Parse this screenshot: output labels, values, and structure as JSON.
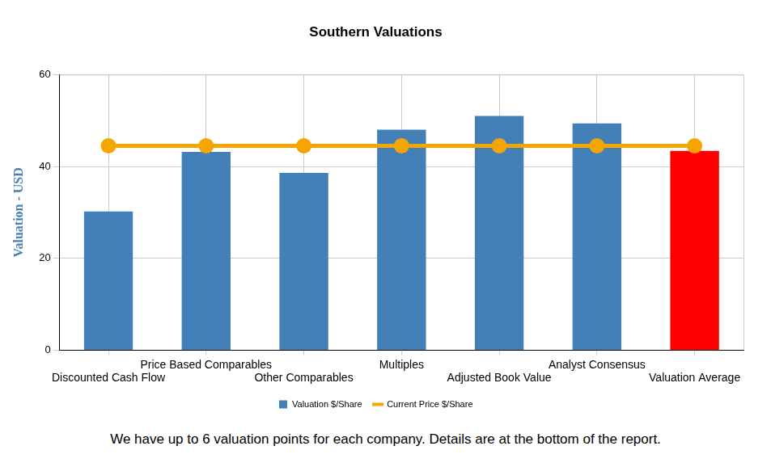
{
  "chart_data": {
    "type": "bar",
    "title": "Southern Valuations",
    "y_label": "Valuation - USD",
    "categories": [
      "Discounted Cash Flow",
      "Price Based Comparables",
      "Other Comparables",
      "Multiples",
      "Adjusted Book Value",
      "Analyst Consensus",
      "Valuation Average"
    ],
    "series": [
      {
        "name": "Valuation $/Share",
        "type": "bar",
        "color": "#4380b8",
        "colors": [
          "#4380b8",
          "#4380b8",
          "#4380b8",
          "#4380b8",
          "#4380b8",
          "#4380b8",
          "#ff0000"
        ],
        "values": [
          30.2,
          43.2,
          38.6,
          48,
          51,
          49.4,
          43.4
        ]
      },
      {
        "name": "Current Price $/Share",
        "type": "line",
        "color": "#f5a500",
        "marker": "circle",
        "values": [
          44.5,
          44.5,
          44.5,
          44.5,
          44.5,
          44.5,
          44.5
        ]
      }
    ],
    "ylim": [
      0,
      60
    ],
    "yticks": [
      0,
      20,
      40,
      60
    ],
    "grid": true,
    "legend": "bottom",
    "annotations": [
      "We have up to 6 valuation points for each company. Details are at the bottom of the report."
    ]
  }
}
